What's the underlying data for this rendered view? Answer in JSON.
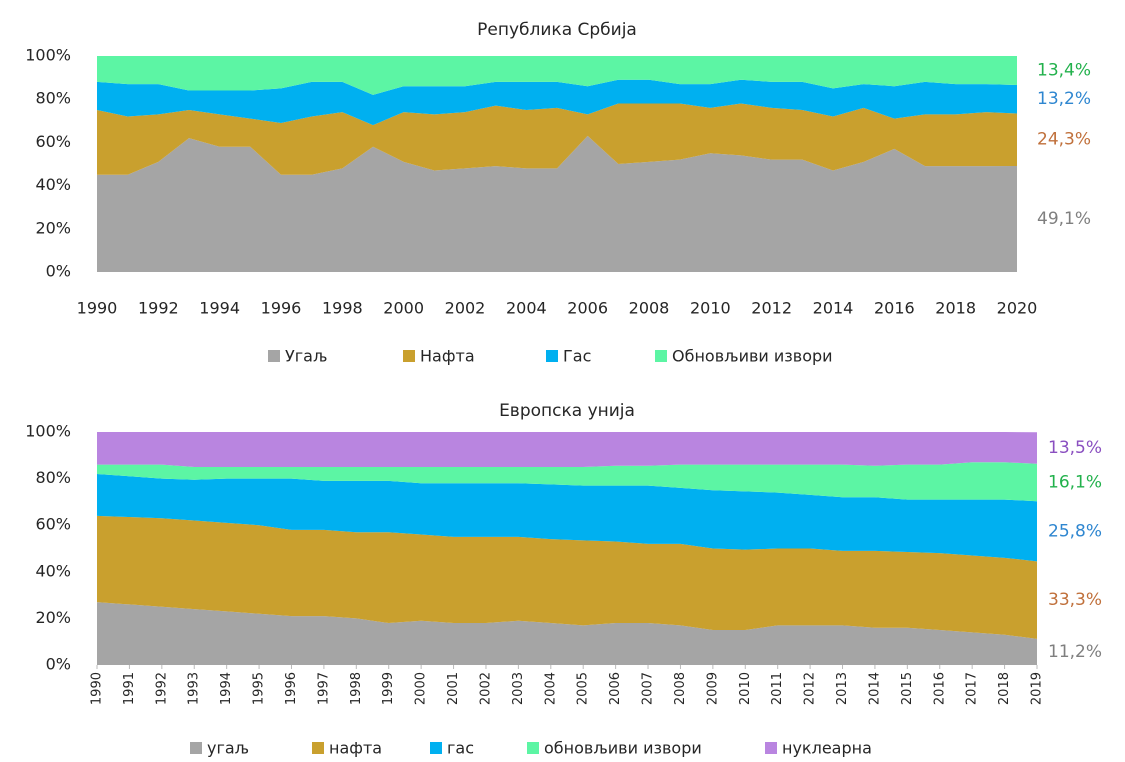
{
  "chart_data": [
    {
      "type": "area",
      "stacked": true,
      "title": "Република Србија",
      "x": [
        1990,
        1991,
        1992,
        1993,
        1994,
        1995,
        1996,
        1997,
        1998,
        1999,
        2000,
        2001,
        2002,
        2003,
        2004,
        2005,
        2006,
        2007,
        2008,
        2009,
        2010,
        2011,
        2012,
        2013,
        2014,
        2015,
        2016,
        2017,
        2018,
        2019,
        2020
      ],
      "xticks": [
        1990,
        1992,
        1994,
        1996,
        1998,
        2000,
        2002,
        2004,
        2006,
        2008,
        2010,
        2012,
        2014,
        2016,
        2018,
        2020
      ],
      "xlim": [
        1990,
        2020
      ],
      "ylim": [
        0,
        100
      ],
      "yticks": [
        {
          "value": 0,
          "label": "0%"
        },
        {
          "value": 20,
          "label": "20%"
        },
        {
          "value": 40,
          "label": "40%"
        },
        {
          "value": 60,
          "label": "60%"
        },
        {
          "value": 80,
          "label": "80%"
        },
        {
          "value": 100,
          "label": "100%"
        }
      ],
      "legend": "bottom",
      "series": [
        {
          "name": "Угаљ",
          "color": "#a5a5a5",
          "label_color": "#7f7f7f",
          "values": [
            45,
            45,
            51,
            62,
            58,
            58,
            45,
            45,
            48,
            58,
            51,
            47,
            48,
            49,
            48,
            48,
            63,
            50,
            51,
            52,
            55,
            54,
            52,
            52,
            47,
            51,
            57,
            49,
            49,
            49,
            49.1
          ],
          "value_labels": [
            null,
            null,
            null,
            null,
            null,
            null,
            null,
            null,
            null,
            null,
            null,
            null,
            null,
            null,
            null,
            null,
            null,
            null,
            null,
            null,
            null,
            null,
            null,
            null,
            null,
            null,
            null,
            null,
            null,
            null,
            "49,1%"
          ]
        },
        {
          "name": "Нафта",
          "color": "#c9a02e",
          "label_color": "#c0703b",
          "values": [
            30,
            27,
            22,
            13,
            15,
            13,
            24,
            27,
            26,
            10,
            23,
            26,
            26,
            28,
            27,
            28,
            10,
            28,
            27,
            26,
            21,
            24,
            24,
            23,
            25,
            25,
            14,
            24,
            24,
            25,
            24.3
          ],
          "value_labels": [
            null,
            null,
            null,
            null,
            null,
            null,
            null,
            null,
            null,
            null,
            null,
            null,
            null,
            null,
            null,
            null,
            null,
            null,
            null,
            null,
            null,
            null,
            null,
            null,
            null,
            null,
            null,
            null,
            null,
            null,
            "24,3%"
          ]
        },
        {
          "name": "Гас",
          "color": "#00b0f0",
          "label_color": "#2e86d0",
          "values": [
            13,
            15,
            14,
            9,
            11,
            13,
            16,
            16,
            14,
            14,
            12,
            13,
            12,
            11,
            13,
            12,
            13,
            11,
            11,
            9,
            11,
            11,
            12,
            13,
            13,
            11,
            15,
            15,
            14,
            13,
            13.2
          ],
          "value_labels": [
            null,
            null,
            null,
            null,
            null,
            null,
            null,
            null,
            null,
            null,
            null,
            null,
            null,
            null,
            null,
            null,
            null,
            null,
            null,
            null,
            null,
            null,
            null,
            null,
            null,
            null,
            null,
            null,
            null,
            null,
            "13,2%"
          ]
        },
        {
          "name": "Обновљиви извори",
          "color": "#5cf5a4",
          "label_color": "#22b14c",
          "values": [
            12,
            13,
            13,
            16,
            16,
            16,
            15,
            12,
            12,
            18,
            14,
            14,
            14,
            12,
            12,
            12,
            14,
            11,
            11,
            13,
            13,
            11,
            12,
            12,
            15,
            13,
            14,
            12,
            13,
            13,
            13.4
          ],
          "value_labels": [
            null,
            null,
            null,
            null,
            null,
            null,
            null,
            null,
            null,
            null,
            null,
            null,
            null,
            null,
            null,
            null,
            null,
            null,
            null,
            null,
            null,
            null,
            null,
            null,
            null,
            null,
            null,
            null,
            null,
            null,
            "13,4%"
          ]
        }
      ]
    },
    {
      "type": "area",
      "stacked": true,
      "title": "Европска унија",
      "x": [
        1990,
        1991,
        1992,
        1993,
        1994,
        1995,
        1996,
        1997,
        1998,
        1999,
        2000,
        2001,
        2002,
        2003,
        2004,
        2005,
        2006,
        2007,
        2008,
        2009,
        2010,
        2011,
        2012,
        2013,
        2014,
        2015,
        2016,
        2017,
        2018,
        2019
      ],
      "xticks": [
        1990,
        1991,
        1992,
        1993,
        1994,
        1995,
        1996,
        1997,
        1998,
        1999,
        2000,
        2001,
        2002,
        2003,
        2004,
        2005,
        2006,
        2007,
        2008,
        2009,
        2010,
        2011,
        2012,
        2013,
        2014,
        2015,
        2016,
        2017,
        2018,
        2019
      ],
      "xlim": [
        1990,
        2019
      ],
      "ylim": [
        0,
        100
      ],
      "yticks": [
        {
          "value": 0,
          "label": "0%"
        },
        {
          "value": 20,
          "label": "20%"
        },
        {
          "value": 40,
          "label": "40%"
        },
        {
          "value": 60,
          "label": "60%"
        },
        {
          "value": 80,
          "label": "80%"
        },
        {
          "value": 100,
          "label": "100%"
        }
      ],
      "legend": "bottom",
      "series": [
        {
          "name": "угаљ",
          "color": "#a5a5a5",
          "label_color": "#7f7f7f",
          "values": [
            27,
            26,
            25,
            24,
            23,
            22,
            21,
            21,
            20,
            18,
            19,
            18,
            18,
            19,
            18,
            17,
            18,
            18,
            17,
            15,
            15,
            17,
            17,
            17,
            16,
            16,
            15,
            14,
            13,
            11.2
          ],
          "value_labels": [
            null,
            null,
            null,
            null,
            null,
            null,
            null,
            null,
            null,
            null,
            null,
            null,
            null,
            null,
            null,
            null,
            null,
            null,
            null,
            null,
            null,
            null,
            null,
            null,
            null,
            null,
            null,
            null,
            null,
            "11,2%"
          ]
        },
        {
          "name": "нафта",
          "color": "#c9a02e",
          "label_color": "#c0703b",
          "values": [
            37,
            37.5,
            38,
            38,
            38,
            38,
            37,
            37,
            37,
            39,
            37,
            37,
            37,
            36,
            36,
            36.5,
            35,
            34,
            35,
            35,
            34.5,
            33,
            33,
            32,
            33,
            32.5,
            33,
            33,
            33,
            33.3
          ],
          "value_labels": [
            null,
            null,
            null,
            null,
            null,
            null,
            null,
            null,
            null,
            null,
            null,
            null,
            null,
            null,
            null,
            null,
            null,
            null,
            null,
            null,
            null,
            null,
            null,
            null,
            null,
            null,
            null,
            null,
            null,
            "33,3%"
          ]
        },
        {
          "name": "гас",
          "color": "#00b0f0",
          "label_color": "#2e86d0",
          "values": [
            18,
            17.5,
            17,
            17.5,
            19,
            20,
            22,
            21,
            22,
            22,
            22,
            23,
            23,
            23,
            23.5,
            23.5,
            24,
            25,
            24,
            25,
            25,
            24,
            23,
            23,
            23,
            22.5,
            23,
            24,
            25,
            25.8
          ],
          "value_labels": [
            null,
            null,
            null,
            null,
            null,
            null,
            null,
            null,
            null,
            null,
            null,
            null,
            null,
            null,
            null,
            null,
            null,
            null,
            null,
            null,
            null,
            null,
            null,
            null,
            null,
            null,
            null,
            null,
            null,
            "25,8%"
          ]
        },
        {
          "name": "обновљиви извори",
          "color": "#5cf5a4",
          "label_color": "#22b14c",
          "values": [
            4,
            5,
            6,
            5.5,
            5,
            5,
            5,
            6,
            6,
            6,
            7,
            7,
            7,
            7,
            7.5,
            8,
            8.5,
            8.5,
            10,
            11,
            11.5,
            12,
            13,
            14,
            13.5,
            15,
            15,
            16,
            16,
            16.1
          ],
          "value_labels": [
            null,
            null,
            null,
            null,
            null,
            null,
            null,
            null,
            null,
            null,
            null,
            null,
            null,
            null,
            null,
            null,
            null,
            null,
            null,
            null,
            null,
            null,
            null,
            null,
            null,
            null,
            null,
            null,
            null,
            "16,1%"
          ]
        },
        {
          "name": "нуклеарна",
          "color": "#b985e0",
          "label_color": "#8a4fc0",
          "values": [
            14,
            14,
            14,
            15,
            15,
            15,
            15,
            15,
            15,
            15,
            15,
            15,
            15,
            15,
            15,
            15,
            14.5,
            14.5,
            14,
            14,
            14,
            14,
            14,
            14,
            14.5,
            14,
            14,
            13,
            13,
            13.5
          ],
          "value_labels": [
            null,
            null,
            null,
            null,
            null,
            null,
            null,
            null,
            null,
            null,
            null,
            null,
            null,
            null,
            null,
            null,
            null,
            null,
            null,
            null,
            null,
            null,
            null,
            null,
            null,
            null,
            null,
            null,
            null,
            "13,5%"
          ]
        }
      ]
    }
  ]
}
